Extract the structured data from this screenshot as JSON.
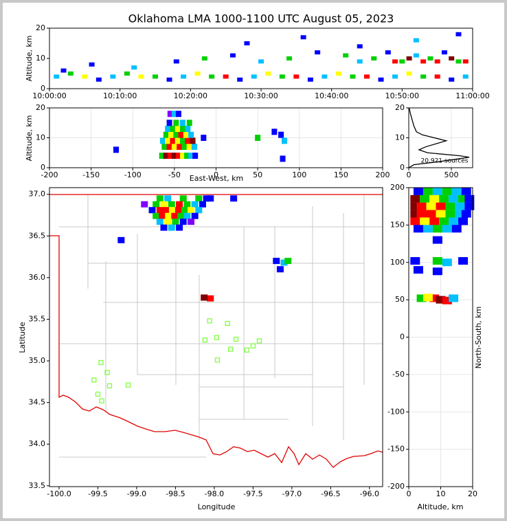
{
  "title": "Oklahoma LMA 1000-1100 UTC August 05, 2023",
  "chart_data": [
    {
      "type": "scatter",
      "ylabel": "Altitude, km",
      "xlim": [
        0,
        60
      ],
      "ylim": [
        0,
        20
      ],
      "xticks": [
        {
          "value": 0,
          "label": "10:00:00"
        },
        {
          "value": 10,
          "label": "10:10:00"
        },
        {
          "value": 20,
          "label": "10:20:00"
        },
        {
          "value": 30,
          "label": "10:30:00"
        },
        {
          "value": 40,
          "label": "10:40:00"
        },
        {
          "value": 50,
          "label": "10:50:00"
        },
        {
          "value": 60,
          "label": "11:00:00"
        }
      ],
      "yticks": [
        0,
        10,
        20
      ],
      "grid": false,
      "x": [
        1,
        3,
        5,
        7,
        9,
        11,
        13,
        15,
        17,
        19,
        21,
        23,
        25,
        27,
        29,
        31,
        33,
        35,
        37,
        39,
        41,
        43,
        45,
        47,
        49,
        51,
        53,
        55,
        57,
        59,
        2,
        6,
        12,
        18,
        22,
        26,
        30,
        34,
        38,
        42,
        44,
        46,
        48,
        50,
        52,
        54,
        56,
        58,
        49,
        51,
        53,
        55,
        57,
        59,
        28,
        36,
        44,
        52,
        58
      ],
      "y": [
        4,
        5,
        4,
        3,
        4,
        5,
        4,
        4,
        3,
        4,
        5,
        4,
        4,
        3,
        4,
        5,
        4,
        4,
        3,
        4,
        5,
        4,
        4,
        3,
        4,
        5,
        4,
        4,
        3,
        4,
        6,
        8,
        7,
        9,
        10,
        11,
        9,
        10,
        12,
        11,
        9,
        10,
        12,
        9,
        11,
        10,
        12,
        9,
        9,
        10,
        9,
        9,
        10,
        9,
        15,
        17,
        14,
        16,
        18
      ],
      "colors": [
        "#00c0ff",
        "#00d000",
        "#ffff00",
        "#0000ff",
        "#00c0ff",
        "#00d000",
        "#ffff00",
        "#00d000",
        "#0000ff",
        "#00c0ff",
        "#ffff00",
        "#00d000",
        "#ff0000",
        "#0000ff",
        "#00c0ff",
        "#ffff00",
        "#00d000",
        "#ff0000",
        "#0000ff",
        "#00c0ff",
        "#ffff00",
        "#00d000",
        "#ff0000",
        "#0000ff",
        "#00c0ff",
        "#ffff00",
        "#00d000",
        "#ff0000",
        "#0000ff",
        "#00c0ff",
        "#0000ff",
        "#0000ff",
        "#00c0ff",
        "#0000ff",
        "#00d000",
        "#0000ff",
        "#00c0ff",
        "#00d000",
        "#0000ff",
        "#00d000",
        "#00c0ff",
        "#00d000",
        "#0000ff",
        "#00d000",
        "#00c0ff",
        "#00d000",
        "#0000ff",
        "#00d000",
        "#ff0000",
        "#800000",
        "#ff0000",
        "#ff0000",
        "#800000",
        "#ff0000",
        "#0000ff",
        "#0000ff",
        "#0000ff",
        "#00c0ff",
        "#0000ff"
      ]
    },
    {
      "type": "scatter",
      "xlabel": "East-West, km",
      "ylabel": "Altitude, km",
      "xlim": [
        -200,
        200
      ],
      "ylim": [
        0,
        20
      ],
      "xticks": [
        -200,
        -150,
        -100,
        -50,
        0,
        50,
        100,
        150,
        200
      ],
      "yticks": [
        0,
        10,
        20
      ],
      "grid": true,
      "x": [
        -65,
        -60,
        -55,
        -50,
        -45,
        -40,
        -35,
        -30,
        -25,
        -62,
        -56,
        -50,
        -44,
        -38,
        -32,
        -26,
        -64,
        -58,
        -52,
        -46,
        -40,
        -34,
        -28,
        -60,
        -54,
        -48,
        -42,
        -36,
        -30,
        -58,
        -52,
        -46,
        -40,
        -34,
        -56,
        -48,
        -40,
        -32,
        -55,
        -50,
        -45,
        -15,
        -120,
        50,
        78,
        82,
        80,
        70
      ],
      "y": [
        4,
        4,
        4,
        4,
        4,
        4,
        4,
        4,
        4,
        7,
        7,
        7,
        7,
        7,
        7,
        7,
        9,
        9,
        9,
        9,
        9,
        9,
        9,
        11,
        11,
        11,
        11,
        11,
        11,
        13,
        13,
        13,
        13,
        13,
        15,
        15,
        15,
        15,
        18,
        18,
        18,
        10,
        6,
        10,
        11,
        9,
        3,
        12
      ],
      "colors": [
        "#00d000",
        "#800000",
        "#ff0000",
        "#800000",
        "#ff0000",
        "#ffff00",
        "#00d000",
        "#00c0ff",
        "#0000ff",
        "#00d000",
        "#ff0000",
        "#ffff00",
        "#ff0000",
        "#00d000",
        "#ffff00",
        "#00c0ff",
        "#00c0ff",
        "#ffff00",
        "#ff0000",
        "#ffff00",
        "#00d000",
        "#ff0000",
        "#800000",
        "#00d000",
        "#ffff00",
        "#00d000",
        "#ff0000",
        "#ffff00",
        "#00c0ff",
        "#00c0ff",
        "#00d000",
        "#ffff00",
        "#00d000",
        "#00c0ff",
        "#0000ff",
        "#00d000",
        "#00c0ff",
        "#00d000",
        "#8000ff",
        "#00c0ff",
        "#0000ff",
        "#0000ff",
        "#0000ff",
        "#00d000",
        "#0000ff",
        "#00c0ff",
        "#0000ff",
        "#0000ff"
      ]
    },
    {
      "type": "line",
      "annotation": "20,921 sources",
      "xlim": [
        0,
        750
      ],
      "ylim": [
        0,
        20
      ],
      "xticks": [
        0,
        500
      ],
      "yticks": [
        0,
        10,
        20
      ],
      "grid": true,
      "color": "#000000",
      "x": [
        0,
        60,
        350,
        710,
        600,
        220,
        120,
        200,
        440,
        300,
        160,
        90,
        60,
        40,
        20,
        5
      ],
      "y": [
        0,
        1,
        2,
        3.5,
        4,
        5,
        6,
        7,
        9,
        10,
        11,
        12,
        14,
        16,
        18,
        20
      ]
    },
    {
      "type": "scatter",
      "xlabel": "Longitude",
      "ylabel": "Latitude",
      "xlim": [
        -100.124,
        -95.83
      ],
      "ylim": [
        33.49,
        37.08
      ],
      "xticks": [
        {
          "value": -100,
          "label": "-100.0"
        },
        -99.5,
        {
          "value": -99,
          "label": "-99.0"
        },
        -98.5,
        {
          "value": -98,
          "label": "-98.0"
        },
        -97.5,
        {
          "value": -97,
          "label": "-97.0"
        },
        -96.5,
        {
          "value": -96,
          "label": "-96.0"
        }
      ],
      "yticks": [
        33.5,
        {
          "value": 34,
          "label": "34.0"
        },
        34.5,
        {
          "value": 35,
          "label": "35.0"
        },
        35.5,
        {
          "value": 36,
          "label": "36.0"
        },
        36.5,
        {
          "value": 37,
          "label": "37.0"
        }
      ],
      "grid": false,
      "x": [
        -98.7,
        -98.6,
        -98.4,
        -98.2,
        -98.1,
        -98.9,
        -98.75,
        -98.65,
        -98.55,
        -98.45,
        -98.35,
        -98.25,
        -98.15,
        -98.8,
        -98.7,
        -98.62,
        -98.54,
        -98.46,
        -98.38,
        -98.3,
        -98.2,
        -98.75,
        -98.67,
        -98.59,
        -98.51,
        -98.43,
        -98.35,
        -98.25,
        -98.7,
        -98.6,
        -98.5,
        -98.4,
        -98.3,
        -98.65,
        -98.55,
        -98.45,
        -98.05,
        -98.13,
        -97.1,
        -97.05,
        -97.2,
        -97.15,
        -99.2,
        -98.05,
        -97.75
      ],
      "y": [
        36.95,
        36.95,
        36.95,
        36.95,
        36.95,
        36.88,
        36.88,
        36.88,
        36.88,
        36.88,
        36.88,
        36.88,
        36.88,
        36.81,
        36.81,
        36.81,
        36.81,
        36.81,
        36.81,
        36.81,
        36.81,
        36.74,
        36.74,
        36.74,
        36.74,
        36.74,
        36.74,
        36.74,
        36.67,
        36.67,
        36.67,
        36.67,
        36.67,
        36.6,
        36.6,
        36.6,
        35.75,
        35.76,
        36.18,
        36.2,
        36.2,
        36.1,
        36.45,
        36.95,
        36.95
      ],
      "colors": [
        "#00d000",
        "#00c0ff",
        "#00d000",
        "#00d000",
        "#0000ff",
        "#8000ff",
        "#00d000",
        "#ffff00",
        "#00d000",
        "#ff0000",
        "#00d000",
        "#00c0ff",
        "#0000ff",
        "#0000ff",
        "#ff0000",
        "#ff0000",
        "#ffff00",
        "#ff0000",
        "#00d000",
        "#ffff00",
        "#00c0ff",
        "#00d000",
        "#ff0000",
        "#ffff00",
        "#ff0000",
        "#00d000",
        "#00c0ff",
        "#0000ff",
        "#00c0ff",
        "#ffff00",
        "#00d000",
        "#0000ff",
        "#8000ff",
        "#0000ff",
        "#00c0ff",
        "#0000ff",
        "#ff0000",
        "#800000",
        "#00c0ff",
        "#00d000",
        "#0000ff",
        "#0000ff",
        "#0000ff",
        "#0000ff",
        "#0000ff"
      ],
      "stations": {
        "color": "#80ff40",
        "x": [
          -98.06,
          -97.83,
          -98.12,
          -97.97,
          -97.72,
          -97.42,
          -97.79,
          -97.58,
          -97.5,
          -97.96,
          -99.46,
          -99.38,
          -99.55,
          -99.35,
          -99.11,
          -99.5,
          -99.45
        ],
        "y": [
          35.48,
          35.45,
          35.25,
          35.28,
          35.26,
          35.24,
          35.14,
          35.13,
          35.18,
          35.01,
          34.98,
          34.86,
          34.77,
          34.7,
          34.71,
          34.6,
          34.52
        ]
      }
    },
    {
      "type": "scatter",
      "xlabel": "Altitude, km",
      "ylabel": "North-South, km",
      "xlim": [
        0,
        20
      ],
      "ylim": [
        -200,
        200
      ],
      "xticks": [
        0,
        10,
        20
      ],
      "yticks": [
        -200,
        -150,
        -100,
        -50,
        0,
        50,
        100,
        150,
        200
      ],
      "grid": true,
      "x": [
        3,
        6,
        9,
        12,
        15,
        18,
        2,
        5,
        8,
        11,
        14,
        17,
        19,
        2,
        4,
        7,
        10,
        13,
        16,
        19,
        2,
        4,
        7,
        10,
        13,
        16,
        18,
        2,
        5,
        8,
        11,
        14,
        17,
        3,
        6,
        9,
        12,
        15,
        9,
        2,
        9,
        12,
        17,
        9,
        3,
        4,
        8,
        10,
        12,
        6,
        14
      ],
      "y": [
        195,
        195,
        195,
        195,
        195,
        195,
        185,
        185,
        185,
        185,
        185,
        185,
        185,
        175,
        175,
        175,
        175,
        175,
        175,
        175,
        165,
        165,
        165,
        165,
        165,
        165,
        165,
        155,
        155,
        155,
        155,
        155,
        155,
        145,
        145,
        145,
        145,
        145,
        130,
        102,
        102,
        100,
        102,
        88,
        90,
        52,
        52,
        50,
        49,
        53,
        52
      ],
      "colors": [
        "#0000ff",
        "#00d000",
        "#00c0ff",
        "#00d000",
        "#00c0ff",
        "#0000ff",
        "#800000",
        "#00d000",
        "#ffff00",
        "#00d000",
        "#00c0ff",
        "#00d000",
        "#0000ff",
        "#800000",
        "#ff0000",
        "#ffff00",
        "#ff0000",
        "#00d000",
        "#00c0ff",
        "#0000ff",
        "#800000",
        "#ff0000",
        "#ff0000",
        "#ffff00",
        "#00d000",
        "#00c0ff",
        "#0000ff",
        "#ff0000",
        "#ffff00",
        "#ff0000",
        "#00d000",
        "#00c0ff",
        "#0000ff",
        "#0000ff",
        "#00c0ff",
        "#00d000",
        "#00c0ff",
        "#0000ff",
        "#0000ff",
        "#0000ff",
        "#00d000",
        "#00c0ff",
        "#0000ff",
        "#0000ff",
        "#0000ff",
        "#00d000",
        "#ff0000",
        "#800000",
        "#ff0000",
        "#ffff00",
        "#00c0ff"
      ]
    }
  ]
}
